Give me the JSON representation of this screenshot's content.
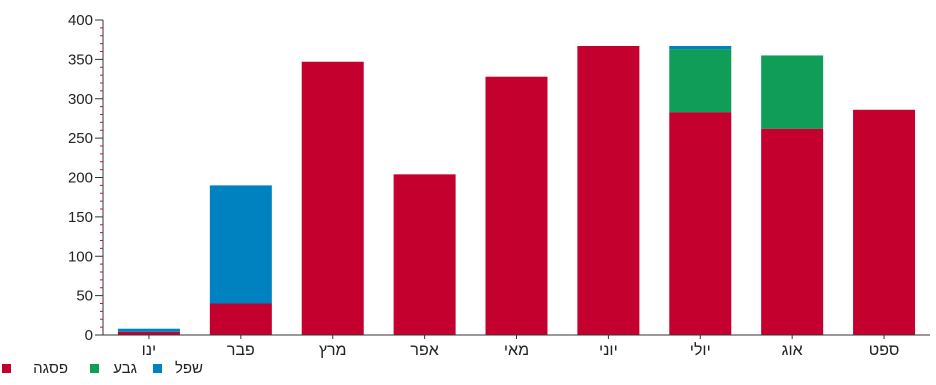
{
  "chart_data": {
    "type": "bar",
    "stacked": true,
    "categories": [
      "ינו",
      "פבר",
      "מרץ",
      "אפר",
      "מאי",
      "יוני",
      "יולי",
      "אוג",
      "ספט"
    ],
    "series": [
      {
        "name": "פסגה",
        "color": "#c4002e",
        "values": [
          4,
          40,
          347,
          204,
          328,
          367,
          283,
          262,
          286
        ]
      },
      {
        "name": "גבע",
        "color": "#0f9d58",
        "values": [
          0,
          0,
          0,
          0,
          0,
          0,
          80,
          93,
          0
        ]
      },
      {
        "name": "שפל",
        "color": "#0082c0",
        "values": [
          4,
          150,
          0,
          0,
          0,
          0,
          4,
          0,
          0
        ]
      }
    ],
    "ylim": [
      0,
      400
    ],
    "yticks": [
      0,
      50,
      100,
      150,
      200,
      250,
      300,
      350,
      400
    ],
    "legend_position": "bottom-left",
    "legend_order": [
      "פסגה",
      "גבע",
      "שפל"
    ],
    "grid": false
  }
}
